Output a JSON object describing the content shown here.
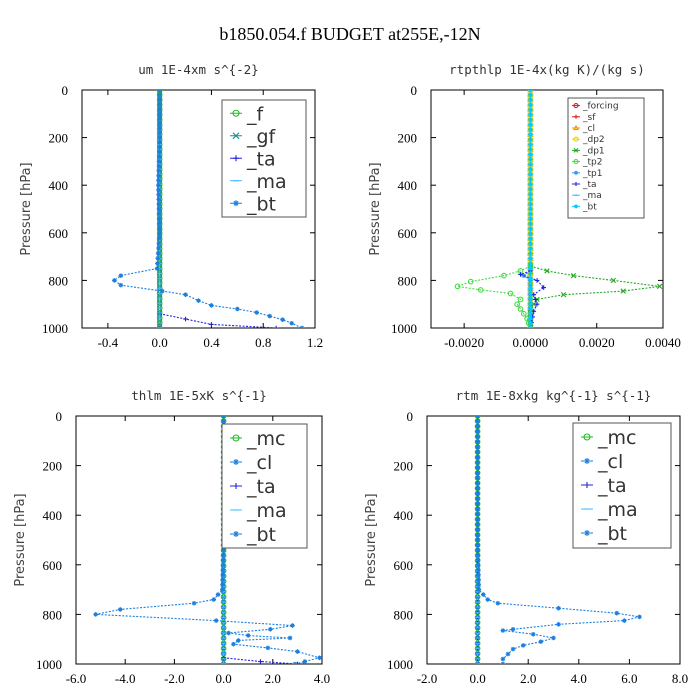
{
  "title": "b1850.054.f  BUDGET at255E,-12N",
  "chart_data": [
    {
      "type": "line",
      "title": "um  1E-4xm s^{-2}",
      "ylabel": "Pressure [hPa]",
      "xlim": [
        -0.6,
        1.2
      ],
      "ylim": [
        0,
        1000
      ],
      "xticks": [
        -0.4,
        0.0,
        0.4,
        0.8,
        1.2
      ],
      "xtick_labels": [
        "-0.4",
        "0.0",
        "0.4",
        "0.8",
        "1.2"
      ],
      "yticks": [
        0,
        200,
        400,
        600,
        800,
        1000
      ],
      "ytick_labels": [
        "0",
        "200",
        "400",
        "600",
        "800",
        "1000"
      ],
      "legend_placement": "top-right",
      "legend_size": "large",
      "series": [
        {
          "name": "_f",
          "color": "#22bb22",
          "marker": "o",
          "points": [
            [
              0,
              0
            ],
            [
              0,
              1000
            ]
          ]
        },
        {
          "name": "_gf",
          "color": "#1a8a8a",
          "marker": "x",
          "points": [
            [
              0,
              0
            ],
            [
              0,
              1000
            ]
          ]
        },
        {
          "name": "_ta",
          "color": "#2222dd",
          "marker": "+",
          "points": [
            [
              0,
              940
            ],
            [
              0.4,
              985
            ],
            [
              0.9,
              1000
            ]
          ]
        },
        {
          "name": "_ma",
          "color": "#44bbff",
          "marker": "-",
          "points": [
            [
              0,
              0
            ],
            [
              0,
              1000
            ]
          ]
        },
        {
          "name": "_bt",
          "color": "#1a7fe0",
          "marker": "*",
          "points": [
            [
              0.0,
              0
            ],
            [
              0.0,
              200
            ],
            [
              -0.01,
              400
            ],
            [
              0.0,
              600
            ],
            [
              -0.02,
              750
            ],
            [
              -0.3,
              780
            ],
            [
              -0.35,
              800
            ],
            [
              -0.3,
              820
            ],
            [
              0.02,
              845
            ],
            [
              0.2,
              860
            ],
            [
              0.3,
              885
            ],
            [
              0.4,
              905
            ],
            [
              0.6,
              920
            ],
            [
              0.75,
              935
            ],
            [
              0.85,
              950
            ],
            [
              0.95,
              965
            ],
            [
              1.02,
              980
            ],
            [
              1.1,
              1000
            ]
          ]
        }
      ]
    },
    {
      "type": "line",
      "title": "rtpthlp  1E-4x(kg K)/(kg s)",
      "ylabel": "Pressure [hPa]",
      "xlim": [
        -0.003,
        0.004
      ],
      "ylim": [
        0,
        1000
      ],
      "xticks": [
        -0.002,
        0.0,
        0.002,
        0.004
      ],
      "xtick_labels": [
        "-0.0020",
        "0.0000",
        "0.0020",
        "0.0040"
      ],
      "yticks": [
        0,
        200,
        400,
        600,
        800,
        1000
      ],
      "ytick_labels": [
        "0",
        "200",
        "400",
        "600",
        "800",
        "1000"
      ],
      "legend_placement": "top-right",
      "legend_size": "small",
      "series": [
        {
          "name": "_forcing",
          "color": "#cc2222",
          "marker": "o",
          "points": [
            [
              0,
              0
            ],
            [
              0,
              1000
            ]
          ]
        },
        {
          "name": "_sf",
          "color": "#dd2222",
          "marker": "+",
          "points": [
            [
              0,
              0
            ],
            [
              0,
              1000
            ]
          ]
        },
        {
          "name": "_cl",
          "color": "#ee9900",
          "marker": "^",
          "points": [
            [
              0,
              0
            ],
            [
              0,
              1000
            ]
          ]
        },
        {
          "name": "_dp2",
          "color": "#dddd00",
          "marker": "o",
          "points": [
            [
              0,
              0
            ],
            [
              0,
              1000
            ]
          ]
        },
        {
          "name": "_dp1",
          "color": "#22aa22",
          "marker": "x",
          "points": [
            [
              0,
              740
            ],
            [
              0.0005,
              760
            ],
            [
              0.0013,
              780
            ],
            [
              0.0025,
              800
            ],
            [
              0.0039,
              825
            ],
            [
              0.0028,
              845
            ],
            [
              0.001,
              860
            ],
            [
              0.0002,
              880
            ],
            [
              0.0,
              920
            ],
            [
              0.0,
              1000
            ]
          ]
        },
        {
          "name": "_tp2",
          "color": "#44dd44",
          "marker": "o",
          "points": [
            [
              0,
              740
            ],
            [
              -0.0003,
              760
            ],
            [
              -0.0008,
              780
            ],
            [
              -0.0018,
              805
            ],
            [
              -0.0022,
              825
            ],
            [
              -0.0015,
              840
            ],
            [
              -0.0006,
              855
            ],
            [
              -0.0003,
              880
            ],
            [
              -0.0004,
              900
            ],
            [
              -0.0003,
              920
            ],
            [
              -0.0002,
              940
            ],
            [
              -0.0001,
              960
            ],
            [
              0.0,
              1000
            ]
          ]
        },
        {
          "name": "_tp1",
          "color": "#3399ee",
          "marker": "*",
          "points": [
            [
              0,
              760
            ],
            [
              -0.0002,
              780
            ],
            [
              0.0,
              800
            ],
            [
              0.0,
              1000
            ]
          ]
        },
        {
          "name": "_ta",
          "color": "#2222dd",
          "marker": "+",
          "points": [
            [
              0,
              760
            ],
            [
              -0.0003,
              775
            ],
            [
              0.0002,
              800
            ],
            [
              0.0004,
              830
            ],
            [
              0.0001,
              860
            ],
            [
              0.0002,
              900
            ],
            [
              0.0001,
              930
            ],
            [
              0.0,
              1000
            ]
          ]
        },
        {
          "name": "_ma",
          "color": "#44bbff",
          "marker": "-",
          "points": [
            [
              0,
              0
            ],
            [
              0,
              1000
            ]
          ]
        },
        {
          "name": "_bt",
          "color": "#00ccff",
          "marker": "*",
          "points": [
            [
              0,
              0
            ],
            [
              0,
              1000
            ]
          ]
        }
      ]
    },
    {
      "type": "line",
      "title": "thlm  1E-5xK s^{-1}",
      "ylabel": "Pressure [hPa]",
      "xlim": [
        -6.0,
        4.0
      ],
      "ylim": [
        0,
        1000
      ],
      "xticks": [
        -6,
        -4,
        -2,
        0,
        2,
        4
      ],
      "xtick_labels": [
        "-6.0",
        "-4.0",
        "-2.0",
        "0.0",
        "2.0",
        "4.0"
      ],
      "yticks": [
        0,
        200,
        400,
        600,
        800,
        1000
      ],
      "ytick_labels": [
        "0",
        "200",
        "400",
        "600",
        "800",
        "1000"
      ],
      "legend_placement": "top-right",
      "legend_size": "large",
      "series": [
        {
          "name": "_mc",
          "color": "#22bb22",
          "marker": "o",
          "points": [
            [
              0,
              0
            ],
            [
              0,
              1000
            ]
          ]
        },
        {
          "name": "_cl",
          "color": "#1a7fe0",
          "marker": "*",
          "points": [
            [
              0,
              0
            ],
            [
              0,
              1000
            ]
          ]
        },
        {
          "name": "_ta",
          "color": "#2222dd",
          "marker": "+",
          "points": [
            [
              0,
              975
            ],
            [
              1.5,
              990
            ],
            [
              3.0,
              1000
            ]
          ]
        },
        {
          "name": "_ma",
          "color": "#44bbff",
          "marker": "-",
          "points": [
            [
              0,
              0
            ],
            [
              0,
              1000
            ]
          ]
        },
        {
          "name": "_bt",
          "color": "#1a7fe0",
          "marker": "*",
          "points": [
            [
              0.0,
              0
            ],
            [
              0.0,
              500
            ],
            [
              -0.05,
              700
            ],
            [
              -0.4,
              740
            ],
            [
              -1.2,
              755
            ],
            [
              -4.2,
              780
            ],
            [
              -5.2,
              800
            ],
            [
              -0.3,
              825
            ],
            [
              2.8,
              845
            ],
            [
              1.9,
              860
            ],
            [
              0.2,
              875
            ],
            [
              1.0,
              885
            ],
            [
              2.7,
              895
            ],
            [
              0.6,
              905
            ],
            [
              0.4,
              920
            ],
            [
              1.8,
              935
            ],
            [
              3.0,
              950
            ],
            [
              3.9,
              975
            ],
            [
              3.3,
              990
            ],
            [
              2.9,
              1000
            ]
          ]
        }
      ]
    },
    {
      "type": "line",
      "title": "rtm  1E-8xkg kg^{-1} s^{-1}",
      "ylabel": "Pressure [hPa]",
      "xlim": [
        -2.0,
        8.0
      ],
      "ylim": [
        0,
        1000
      ],
      "xticks": [
        -2,
        0,
        2,
        4,
        6,
        8
      ],
      "xtick_labels": [
        "-2.0",
        "0.0",
        "2.0",
        "4.0",
        "6.0",
        "8.0"
      ],
      "yticks": [
        0,
        200,
        400,
        600,
        800,
        1000
      ],
      "ytick_labels": [
        "0",
        "200",
        "400",
        "600",
        "800",
        "1000"
      ],
      "legend_placement": "top-right",
      "legend_size": "large",
      "series": [
        {
          "name": "_mc",
          "color": "#22bb22",
          "marker": "o",
          "points": [
            [
              0,
              0
            ],
            [
              0,
              1000
            ]
          ]
        },
        {
          "name": "_cl",
          "color": "#1a7fe0",
          "marker": "*",
          "points": [
            [
              0,
              0
            ],
            [
              0,
              1000
            ]
          ]
        },
        {
          "name": "_ta",
          "color": "#2222dd",
          "marker": "+",
          "points": [
            [
              0,
              0
            ],
            [
              0,
              1000
            ]
          ]
        },
        {
          "name": "_ma",
          "color": "#44bbff",
          "marker": "-",
          "points": [
            [
              0,
              0
            ],
            [
              0,
              1000
            ]
          ]
        },
        {
          "name": "_bt",
          "color": "#1a7fe0",
          "marker": "*",
          "points": [
            [
              0.0,
              0
            ],
            [
              0.0,
              500
            ],
            [
              0.05,
              700
            ],
            [
              0.4,
              740
            ],
            [
              0.8,
              755
            ],
            [
              3.2,
              775
            ],
            [
              5.5,
              795
            ],
            [
              6.4,
              810
            ],
            [
              5.8,
              825
            ],
            [
              3.2,
              840
            ],
            [
              1.4,
              860
            ],
            [
              1.0,
              865
            ],
            [
              2.2,
              880
            ],
            [
              3.0,
              895
            ],
            [
              2.5,
              910
            ],
            [
              1.8,
              925
            ],
            [
              1.4,
              940
            ],
            [
              1.2,
              960
            ],
            [
              1.0,
              980
            ],
            [
              1.0,
              1000
            ]
          ]
        }
      ]
    }
  ]
}
